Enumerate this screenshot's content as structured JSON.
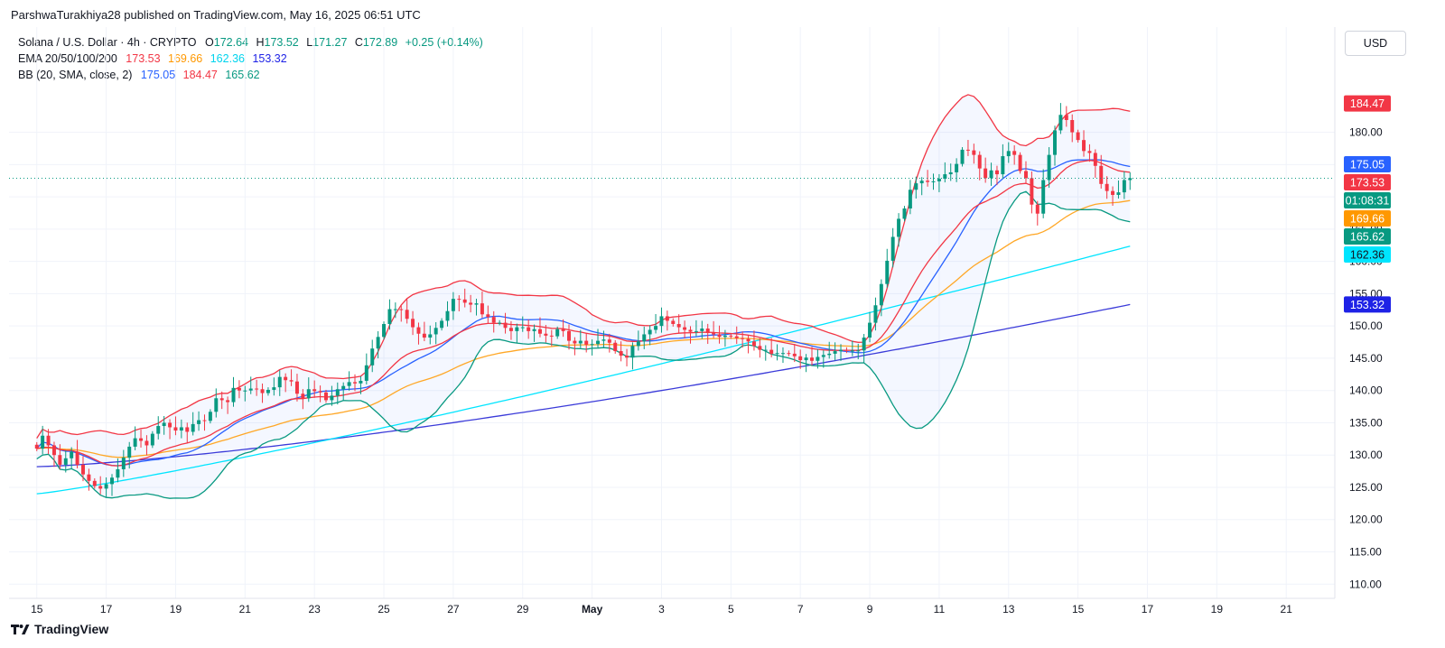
{
  "published_line": "ParshwaTurakhiya28 published on TradingView.com, May 16, 2025 06:51 UTC",
  "currency_button": "USD",
  "brand": "TradingView",
  "legend": {
    "symbol": "Solana / U.S. Dollar · 4h · CRYPTO",
    "ohlc": [
      {
        "k": "O",
        "v": "172.64"
      },
      {
        "k": "H",
        "v": "173.52"
      },
      {
        "k": "L",
        "v": "171.27"
      },
      {
        "k": "C",
        "v": "172.89"
      }
    ],
    "change": "+0.25 (+0.14%)",
    "ema_label": "EMA 20/50/100/200",
    "ema_values": [
      {
        "v": "173.53",
        "color": "#f23645"
      },
      {
        "v": "169.66",
        "color": "#ff9800"
      },
      {
        "v": "162.36",
        "color": "#00e5ff"
      },
      {
        "v": "153.32",
        "color": "#2962ff"
      }
    ],
    "bb_label": "BB (20, SMA, close, 2)",
    "bb_values": [
      {
        "v": "175.05",
        "color": "#2962ff"
      },
      {
        "v": "184.47",
        "color": "#f23645"
      },
      {
        "v": "165.62",
        "color": "#089981"
      }
    ]
  },
  "price_tags": [
    {
      "label": "184.47",
      "value": 184.47,
      "bg": "#f23645",
      "fg": "#ffffff"
    },
    {
      "label": "175.05",
      "value": 175.05,
      "bg": "#2962ff",
      "fg": "#ffffff"
    },
    {
      "label": "173.53",
      "value": 173.53,
      "bg": "#f23645",
      "fg": "#ffffff"
    },
    {
      "label": "01:08:31",
      "value": 172.89,
      "bg": "#089981",
      "fg": "#ffffff"
    },
    {
      "label": "169.66",
      "value": 169.66,
      "bg": "#ff9800",
      "fg": "#ffffff"
    },
    {
      "label": "165.62",
      "value": 165.62,
      "bg": "#089981",
      "fg": "#ffffff"
    },
    {
      "label": "162.36",
      "value": 162.36,
      "bg": "#00e5ff",
      "fg": "#131722"
    },
    {
      "label": "153.32",
      "value": 153.32,
      "bg": "#1e22e6",
      "fg": "#ffffff"
    }
  ],
  "chart_data": {
    "type": "candlestick",
    "title": "Solana / U.S. Dollar · 4h · CRYPTO",
    "x_ticks": [
      "15",
      "17",
      "19",
      "21",
      "23",
      "25",
      "27",
      "29",
      "May",
      "3",
      "5",
      "7",
      "9",
      "11",
      "13",
      "15",
      "17",
      "19",
      "21"
    ],
    "y_ticks": [
      "110.00",
      "115.00",
      "120.00",
      "125.00",
      "130.00",
      "135.00",
      "140.00",
      "145.00",
      "150.00",
      "155.00",
      "160.00",
      "165.00",
      "170.00",
      "175.00",
      "180.00"
    ],
    "ylim": [
      107.8,
      196.3
    ],
    "x_range_days": [
      -0.8,
      37.4
    ],
    "x_axis_start": "Apr 15 00:00",
    "grid": true,
    "current_price": 172.89,
    "closes": [
      131,
      133,
      131.5,
      130,
      128.5,
      129.5,
      130.5,
      128.5,
      127,
      126,
      125.2,
      124.8,
      125.5,
      126.5,
      127.8,
      129.6,
      131.3,
      132.6,
      132.2,
      131.5,
      133.3,
      134.5,
      135,
      134.3,
      133.8,
      134.3,
      133.6,
      134.8,
      135.4,
      135.3,
      136.7,
      138.8,
      138.5,
      138.2,
      140.4,
      140,
      140,
      140.3,
      140.2,
      139.6,
      140.1,
      140.5,
      142.1,
      141.6,
      141.4,
      139.5,
      138.8,
      140.2,
      139.9,
      139.7,
      138.5,
      139.2,
      140.2,
      140.7,
      141.3,
      141.1,
      141.5,
      143.9,
      146.5,
      148.3,
      150.3,
      152.6,
      152.6,
      152.5,
      151.1,
      149.8,
      148.8,
      148.2,
      148.7,
      149.7,
      150.8,
      152.3,
      154.2,
      154.1,
      153.6,
      153.3,
      153.5,
      151.8,
      151.4,
      150.5,
      150.5,
      149.7,
      149.2,
      149.8,
      149.8,
      149.2,
      149.5,
      148.8,
      148.5,
      148.4,
      149.5,
      149.2,
      147.7,
      147.3,
      147.7,
      147.1,
      147.2,
      147.7,
      147.9,
      147.4,
      146.1,
      145.4,
      145.1,
      146.9,
      147.6,
      148.7,
      149.4,
      150,
      151.5,
      150.8,
      150.3,
      149.8,
      149.4,
      149.1,
      149.2,
      149.6,
      148.9,
      148.7,
      148.3,
      148.5,
      148.4,
      148.1,
      148,
      147.6,
      146.9,
      146.3,
      146.3,
      145.7,
      145.8,
      145.8,
      145.7,
      145.3,
      144.7,
      145.1,
      144.6,
      145.2,
      145.5,
      145.7,
      146.1,
      146.3,
      146.2,
      146.2,
      146.2,
      148.2,
      150.5,
      153.2,
      156.5,
      160.1,
      163.8,
      166.6,
      168.2,
      171.1,
      172.1,
      172.5,
      172.3,
      172.4,
      172.8,
      173.5,
      173.8,
      175.1,
      177.3,
      177.2,
      176.5,
      174.4,
      172.9,
      174.1,
      173.5,
      176.3,
      177.1,
      176.5,
      174,
      172.9,
      168.8,
      167.4,
      172.6,
      176.5,
      180.3,
      182.7,
      181.9,
      180,
      178.8,
      177.1,
      176.8,
      174.8,
      172,
      170.9,
      170.3,
      170.7,
      172.6,
      172.9
    ],
    "ema20_last": 173.53,
    "ema50_last": 169.66,
    "ema100_last": 162.36,
    "ema200_last": 153.32,
    "bb_basis_last": 175.05,
    "bb_upper_last": 184.47,
    "bb_lower_last": 165.62
  }
}
